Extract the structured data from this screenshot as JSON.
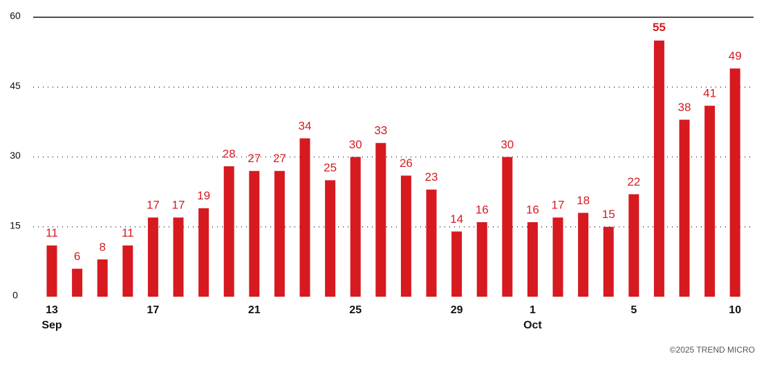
{
  "chart_data": {
    "type": "bar",
    "categories": [
      "13",
      null,
      null,
      null,
      "17",
      null,
      null,
      null,
      "21",
      null,
      null,
      null,
      "25",
      null,
      null,
      null,
      "29",
      null,
      null,
      "1",
      null,
      null,
      null,
      "5",
      null,
      null,
      null,
      "10"
    ],
    "category_sublabels": [
      "Sep",
      null,
      null,
      null,
      null,
      null,
      null,
      null,
      null,
      null,
      null,
      null,
      null,
      null,
      null,
      null,
      null,
      null,
      null,
      "Oct",
      null,
      null,
      null,
      null,
      null,
      null,
      null,
      null
    ],
    "values": [
      11,
      6,
      8,
      11,
      17,
      17,
      19,
      28,
      27,
      27,
      34,
      25,
      30,
      33,
      26,
      23,
      14,
      16,
      30,
      16,
      17,
      18,
      15,
      22,
      55,
      38,
      41,
      49
    ],
    "color": "#d71920",
    "ylim": [
      0,
      60
    ],
    "yticks": [
      0,
      15,
      30,
      45,
      60
    ],
    "grid": true,
    "credit": "©2025 TREND MICRO"
  }
}
